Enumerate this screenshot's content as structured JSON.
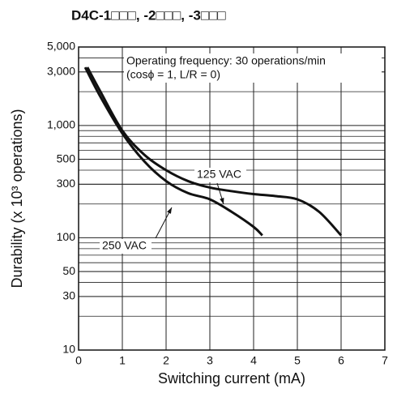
{
  "chart_data": {
    "type": "line",
    "title": "D4C-1□□□, -2□□□, -3□□□",
    "xlabel": "Switching current (mA)",
    "ylabel": "Durability  (x 10³  operations)",
    "annotations": [
      "Operating frequency: 30 operations/min",
      "(cosϕ = 1, L/R = 0)"
    ],
    "xlim": [
      0,
      7
    ],
    "xticks": [
      0,
      1,
      2,
      3,
      4,
      5,
      6,
      7
    ],
    "ylim": [
      10,
      5000
    ],
    "yscale": "log",
    "yticks": [
      10,
      30,
      50,
      100,
      300,
      500,
      {
        "value": 1000,
        "label": "1,000"
      },
      {
        "value": 3000,
        "label": "3,000"
      },
      {
        "value": 5000,
        "label": "5,000"
      }
    ],
    "grid": true,
    "series": [
      {
        "name": "125 VAC",
        "color": "#111111",
        "x": [
          0.2,
          0.5,
          1,
          1.5,
          2,
          2.5,
          3,
          3.5,
          4,
          4.5,
          5,
          5.5,
          6
        ],
        "values": [
          3300,
          2000,
          900,
          550,
          400,
          320,
          280,
          260,
          245,
          235,
          220,
          170,
          105
        ]
      },
      {
        "name": "250 VAC",
        "color": "#111111",
        "x": [
          0.15,
          0.5,
          1,
          1.5,
          2,
          2.5,
          3,
          3.5,
          4,
          4.2
        ],
        "values": [
          3300,
          1800,
          850,
          480,
          320,
          250,
          220,
          170,
          125,
          105
        ]
      }
    ]
  }
}
